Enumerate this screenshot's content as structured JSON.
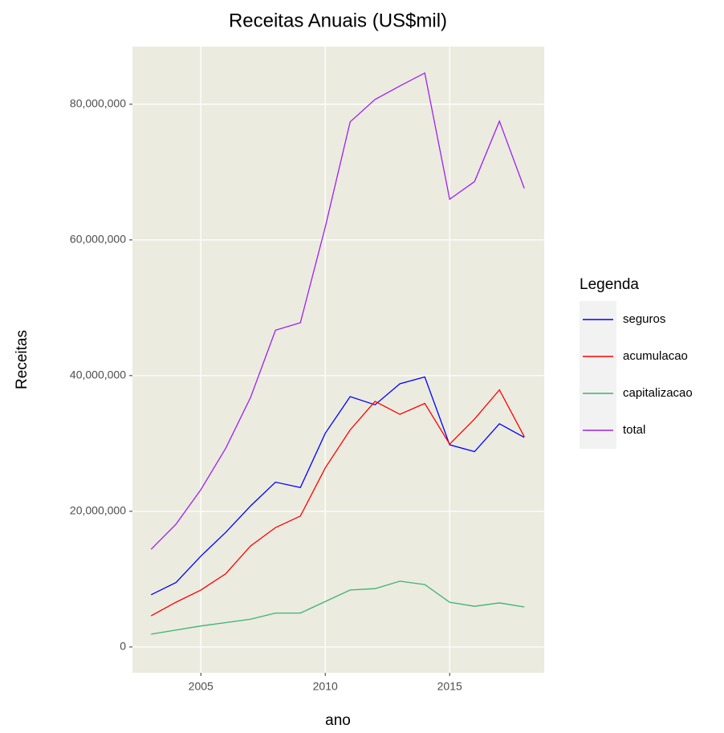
{
  "chart_data": {
    "type": "line",
    "title": "Receitas Anuais (US$mil)",
    "x_label": "ano",
    "y_label": "Receitas",
    "legend_title": "Legenda",
    "legend_position": "right",
    "grid": true,
    "x": [
      2003,
      2004,
      2005,
      2006,
      2007,
      2008,
      2009,
      2010,
      2011,
      2012,
      2013,
      2014,
      2015,
      2016,
      2017,
      2018
    ],
    "xlim": [
      2002.25,
      2018.8
    ],
    "xticks": [
      2005,
      2010,
      2015
    ],
    "ylim": [
      -3800000,
      88500000
    ],
    "yticks": [
      0,
      {
        "value": 20000000,
        "label": "20,000,000"
      },
      {
        "value": 40000000,
        "label": "40,000,000"
      },
      {
        "value": 60000000,
        "label": "60,000,000"
      },
      {
        "value": 80000000,
        "label": "80,000,000"
      }
    ],
    "series": [
      {
        "name": "seguros",
        "color": "#0000ff",
        "values": [
          7700000,
          9500000,
          13400000,
          16900000,
          20800000,
          24300000,
          23500000,
          31500000,
          36900000,
          35700000,
          38800000,
          39800000,
          29800000,
          28800000,
          32900000,
          30900000
        ]
      },
      {
        "name": "acumulacao",
        "color": "#ff0000",
        "values": [
          4600000,
          6600000,
          8400000,
          10800000,
          14900000,
          17600000,
          19300000,
          26400000,
          32000000,
          36200000,
          34300000,
          35900000,
          29900000,
          33600000,
          37900000,
          31000000
        ]
      },
      {
        "name": "capitalizacao",
        "color": "#3cb371",
        "values": [
          1900000,
          2500000,
          3100000,
          3600000,
          4100000,
          5000000,
          5000000,
          6700000,
          8400000,
          8600000,
          9700000,
          9200000,
          6600000,
          6000000,
          6500000,
          5900000
        ]
      },
      {
        "name": "total",
        "color": "#a020f0",
        "values": [
          14400000,
          18100000,
          23200000,
          29300000,
          36800000,
          46700000,
          47800000,
          61900000,
          77400000,
          80700000,
          82700000,
          84600000,
          66000000,
          68600000,
          77500000,
          67600000
        ]
      }
    ]
  }
}
